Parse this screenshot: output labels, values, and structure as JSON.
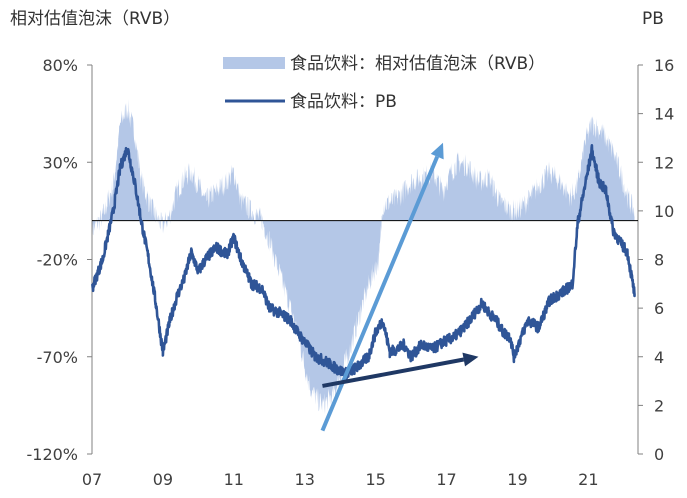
{
  "chart_data": {
    "type": "line+area",
    "left_axis_title": "相对估值泡沫（RVB）",
    "right_axis_title": "PB",
    "left_ticks": [
      "80%",
      "30%",
      "-20%",
      "-70%",
      "-120%"
    ],
    "right_ticks": [
      "16",
      "14",
      "12",
      "10",
      "8",
      "6",
      "4",
      "2",
      "0"
    ],
    "x_ticks": [
      "07",
      "09",
      "11",
      "13",
      "15",
      "17",
      "19",
      "21"
    ],
    "left_ylim": [
      -120,
      80
    ],
    "right_ylim": [
      0,
      16
    ],
    "xlim": [
      2007.0,
      2022.4
    ],
    "legend": [
      {
        "name": "食品饮料：相对估值泡沫（RVB）",
        "color": "#b4c7e7",
        "kind": "area"
      },
      {
        "name": "食品饮料：PB",
        "color": "#2f5597",
        "kind": "line"
      }
    ],
    "series": [
      {
        "name": "食品饮料：相对估值泡沫（RVB）",
        "axis": "left",
        "unit": "%",
        "x": [
          2007.0,
          2007.3,
          2007.6,
          2007.8,
          2008.0,
          2008.2,
          2008.4,
          2008.6,
          2008.8,
          2009.0,
          2009.2,
          2009.4,
          2009.6,
          2009.8,
          2010.0,
          2010.2,
          2010.5,
          2010.8,
          2011.0,
          2011.2,
          2011.5,
          2011.8,
          2012.0,
          2012.3,
          2012.6,
          2012.8,
          2013.0,
          2013.2,
          2013.5,
          2013.8,
          2014.0,
          2014.3,
          2014.6,
          2014.9,
          2015.1,
          2015.2,
          2015.5,
          2015.8,
          2016.0,
          2016.3,
          2016.6,
          2016.9,
          2017.0,
          2017.3,
          2017.6,
          2017.9,
          2018.2,
          2018.5,
          2018.8,
          2019.0,
          2019.3,
          2019.6,
          2019.9,
          2020.2,
          2020.5,
          2020.7,
          2020.9,
          2021.1,
          2021.4,
          2021.7,
          2021.9,
          2022.1,
          2022.3
        ],
        "y": [
          -5,
          2,
          18,
          50,
          58,
          45,
          20,
          10,
          2,
          -3,
          3,
          15,
          22,
          25,
          18,
          10,
          15,
          20,
          25,
          10,
          5,
          0,
          -10,
          -28,
          -45,
          -58,
          -75,
          -88,
          -95,
          -90,
          -80,
          -65,
          -45,
          -28,
          -20,
          8,
          10,
          15,
          20,
          22,
          25,
          15,
          20,
          30,
          28,
          20,
          22,
          10,
          5,
          5,
          10,
          18,
          25,
          20,
          12,
          18,
          40,
          50,
          45,
          35,
          25,
          12,
          5
        ]
      },
      {
        "name": "食品饮料：PB",
        "axis": "right",
        "unit": "x",
        "x": [
          2007.0,
          2007.3,
          2007.6,
          2007.8,
          2008.0,
          2008.2,
          2008.4,
          2008.6,
          2008.8,
          2009.0,
          2009.2,
          2009.4,
          2009.6,
          2009.8,
          2010.0,
          2010.2,
          2010.5,
          2010.8,
          2011.0,
          2011.2,
          2011.5,
          2011.8,
          2012.0,
          2012.3,
          2012.6,
          2012.8,
          2013.0,
          2013.3,
          2013.6,
          2013.9,
          2014.2,
          2014.5,
          2014.8,
          2015.0,
          2015.2,
          2015.4,
          2015.6,
          2015.8,
          2016.0,
          2016.3,
          2016.6,
          2016.9,
          2017.2,
          2017.5,
          2017.8,
          2018.0,
          2018.2,
          2018.4,
          2018.6,
          2018.8,
          2018.9,
          2019.1,
          2019.3,
          2019.6,
          2019.9,
          2020.2,
          2020.4,
          2020.55,
          2020.7,
          2020.9,
          2021.1,
          2021.3,
          2021.5,
          2021.7,
          2021.9,
          2022.1,
          2022.3
        ],
        "y": [
          6.8,
          8.0,
          10.0,
          11.8,
          12.6,
          11.2,
          9.5,
          8.0,
          6.2,
          4.2,
          5.5,
          6.5,
          7.2,
          8.3,
          7.5,
          8.0,
          8.5,
          8.2,
          8.9,
          8.0,
          7.0,
          6.8,
          6.0,
          5.8,
          5.5,
          5.0,
          4.6,
          4.0,
          3.8,
          3.5,
          3.3,
          3.6,
          4.0,
          5.0,
          5.5,
          4.2,
          4.3,
          4.5,
          4.0,
          4.5,
          4.3,
          4.6,
          4.8,
          5.2,
          5.8,
          6.2,
          5.8,
          5.5,
          5.0,
          4.8,
          4.0,
          4.8,
          5.5,
          5.2,
          6.3,
          6.6,
          6.8,
          7.0,
          9.5,
          11.0,
          12.5,
          11.2,
          10.8,
          9.2,
          8.7,
          8.3,
          6.6
        ]
      }
    ],
    "annotations": [
      {
        "kind": "arrow",
        "color": "#5b9bd5",
        "from": {
          "x": 2013.5,
          "y_left": -108
        },
        "to": {
          "x": 2016.9,
          "y_left": 40
        }
      },
      {
        "kind": "arrow",
        "color": "#1f3864",
        "from": {
          "x": 2013.5,
          "y_left": -85
        },
        "to": {
          "x": 2017.9,
          "y_left": -70
        }
      }
    ]
  }
}
